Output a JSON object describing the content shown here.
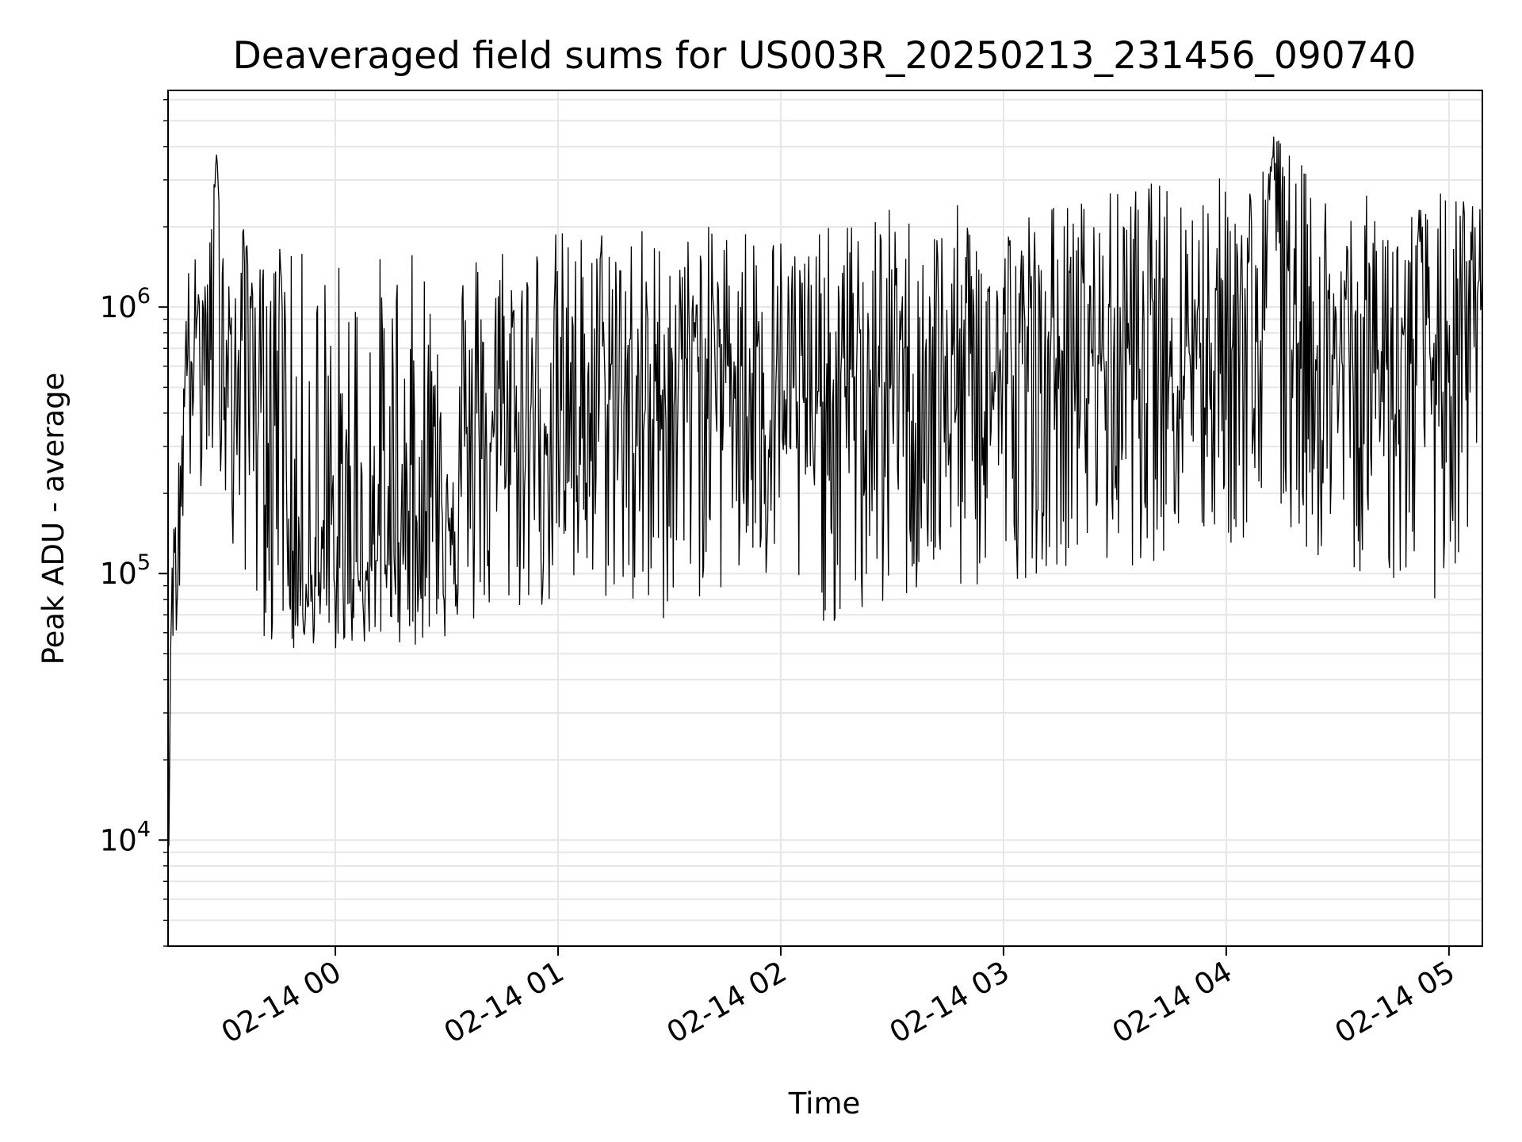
{
  "chart_data": {
    "type": "line",
    "title": "Deaveraged field sums for US003R_20250213_231456_090740",
    "xlabel": "Time",
    "ylabel": "Peak ADU - average",
    "yscale": "log",
    "grid": true,
    "x_tick_labels": [
      "02-14 00",
      "02-14 01",
      "02-14 02",
      "02-14 03",
      "02-14 04",
      "02-14 05"
    ],
    "y_tick_labels": [
      {
        "base": "10",
        "exp": "4"
      },
      {
        "base": "10",
        "exp": "5"
      },
      {
        "base": "10",
        "exp": "6"
      }
    ],
    "xlim": [
      "2025-02-13 23:14:56",
      "2025-02-14 05:09:00"
    ],
    "ylim": [
      4000,
      6500000
    ],
    "line_color": "#000000",
    "series": [
      {
        "x": [
          "2025-02-13 23:14:56",
          "2025-02-13 23:15:00",
          "2025-02-13 23:16:00",
          "2025-02-13 23:17:00",
          "2025-02-13 23:20:00",
          "2025-02-13 23:22:00",
          "2025-02-13 23:23:00",
          "2025-02-13 23:25:00",
          "2025-02-13 23:28:00",
          "2025-02-13 23:30:00",
          "2025-02-13 23:32:00",
          "2025-02-13 23:33:00",
          "2025-02-13 23:35:00",
          "2025-02-13 23:38:00",
          "2025-02-13 23:40:00",
          "2025-02-13 23:43:00",
          "2025-02-13 23:45:00",
          "2025-02-13 23:48:00",
          "2025-02-13 23:50:00",
          "2025-02-13 23:55:00",
          "2025-02-14 00:00:00",
          "2025-02-14 00:05:00",
          "2025-02-14 00:10:00",
          "2025-02-14 00:15:00",
          "2025-02-14 00:20:00",
          "2025-02-14 00:25:00",
          "2025-02-14 00:30:00",
          "2025-02-14 00:35:00",
          "2025-02-14 00:40:00",
          "2025-02-14 00:45:00",
          "2025-02-14 00:50:00",
          "2025-02-14 01:00:00",
          "2025-02-14 01:10:00",
          "2025-02-14 01:15:00",
          "2025-02-14 01:25:00",
          "2025-02-14 01:30:00",
          "2025-02-14 01:40:00",
          "2025-02-14 01:50:00",
          "2025-02-14 02:00:00",
          "2025-02-14 02:08:00",
          "2025-02-14 02:15:00",
          "2025-02-14 02:20:00",
          "2025-02-14 02:30:00",
          "2025-02-14 02:40:00",
          "2025-02-14 02:50:00",
          "2025-02-14 03:00:00",
          "2025-02-14 03:10:00",
          "2025-02-14 03:20:00",
          "2025-02-14 03:30:00",
          "2025-02-14 03:40:00",
          "2025-02-14 03:50:00",
          "2025-02-14 04:00:00",
          "2025-02-14 04:10:00",
          "2025-02-14 04:13:00",
          "2025-02-14 04:20:00",
          "2025-02-14 04:30:00",
          "2025-02-14 04:40:00",
          "2025-02-14 04:50:00",
          "2025-02-14 05:00:00",
          "2025-02-14 05:09:00"
        ],
        "y": [
          40000,
          7000,
          90000,
          60000,
          800000,
          600000,
          1000000,
          700000,
          3500000,
          1000000,
          600000,
          300000,
          1500000,
          900000,
          400000,
          300000,
          1700000,
          80000,
          100000,
          90000,
          90000,
          100000,
          110000,
          120000,
          150000,
          200000,
          200000,
          250000,
          300000,
          350000,
          350000,
          400000,
          400000,
          500000,
          350000,
          600000,
          700000,
          600000,
          500000,
          400000,
          500000,
          550000,
          500000,
          550000,
          500000,
          550000,
          600000,
          650000,
          700000,
          700000,
          800000,
          800000,
          800000,
          4500000,
          700000,
          600000,
          600000,
          700000,
          600000,
          1000000
        ],
        "y_upper": [
          60000,
          10000,
          150000,
          200000,
          1500000,
          1500000,
          2000000,
          1200000,
          3800000,
          2000000,
          1500000,
          1300000,
          2000000,
          1700000,
          1500000,
          1500000,
          1700000,
          1600000,
          1700000,
          1700000,
          1600000,
          1700000,
          1600000,
          1700000,
          1600000,
          1700000,
          1700000,
          1800000,
          1800000,
          2000000,
          2000000,
          2000000,
          2000000,
          2500000,
          2000000,
          1800000,
          2000000,
          2200000,
          2000000,
          2000000,
          2000000,
          2200000,
          2400000,
          2200000,
          2500000,
          2300000,
          2500000,
          2600000,
          2800000,
          3000000,
          3000000,
          3200000,
          3500000,
          4500000,
          3500000,
          2800000,
          2600000,
          2500000,
          2800000,
          2500000
        ],
        "y_lower": [
          30000,
          5500,
          50000,
          40000,
          300000,
          100000,
          200000,
          100000,
          300000,
          200000,
          100000,
          80000,
          100000,
          80000,
          60000,
          50000,
          55000,
          50000,
          50000,
          55000,
          50000,
          55000,
          50000,
          60000,
          50000,
          55000,
          55000,
          60000,
          60000,
          65000,
          70000,
          70000,
          70000,
          80000,
          50000,
          70000,
          80000,
          80000,
          80000,
          70000,
          60000,
          60000,
          70000,
          80000,
          80000,
          90000,
          100000,
          110000,
          100000,
          110000,
          120000,
          120000,
          130000,
          130000,
          120000,
          100000,
          100000,
          80000,
          80000,
          90000
        ]
      }
    ]
  }
}
